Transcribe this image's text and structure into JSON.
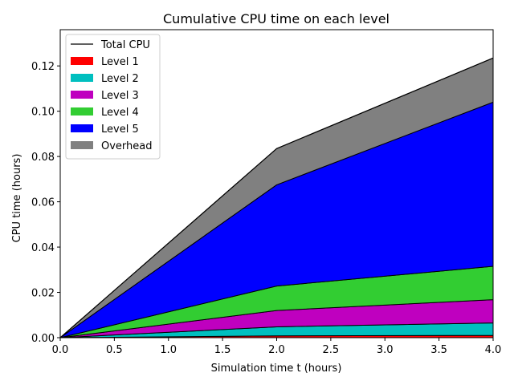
{
  "chart_data": {
    "type": "area",
    "title": "Cumulative CPU time on each level",
    "xlabel": "Simulation time t (hours)",
    "ylabel": "CPU time (hours)",
    "xlim": [
      0.0,
      4.0
    ],
    "ylim": [
      0.0,
      0.136
    ],
    "xticks": [
      "0.0",
      "0.5",
      "1.0",
      "1.5",
      "2.0",
      "2.5",
      "3.0",
      "3.5",
      "4.0"
    ],
    "yticks": [
      "0.00",
      "0.02",
      "0.04",
      "0.06",
      "0.08",
      "0.10",
      "0.12"
    ],
    "grid": false,
    "legend_position": "top-left",
    "stacked": true,
    "x": [
      0.0,
      2.0,
      4.0
    ],
    "total": {
      "name": "Total CPU",
      "color": "#000000",
      "values": [
        0.0,
        0.0835,
        0.1235
      ]
    },
    "series": [
      {
        "name": "Level 1",
        "color": "#ff0000",
        "values": [
          0.0,
          0.0008,
          0.001
        ]
      },
      {
        "name": "Level 2",
        "color": "#00bfbf",
        "values": [
          0.0,
          0.004,
          0.0055
        ]
      },
      {
        "name": "Level 3",
        "color": "#bf00bf",
        "values": [
          0.0,
          0.0072,
          0.0103
        ]
      },
      {
        "name": "Level 4",
        "color": "#32cd32",
        "values": [
          0.0,
          0.0108,
          0.0147
        ]
      },
      {
        "name": "Level 5",
        "color": "#0000ff",
        "values": [
          0.0,
          0.0447,
          0.0725
        ]
      },
      {
        "name": "Overhead",
        "color": "#808080",
        "values": [
          0.0,
          0.016,
          0.0195
        ]
      }
    ]
  }
}
